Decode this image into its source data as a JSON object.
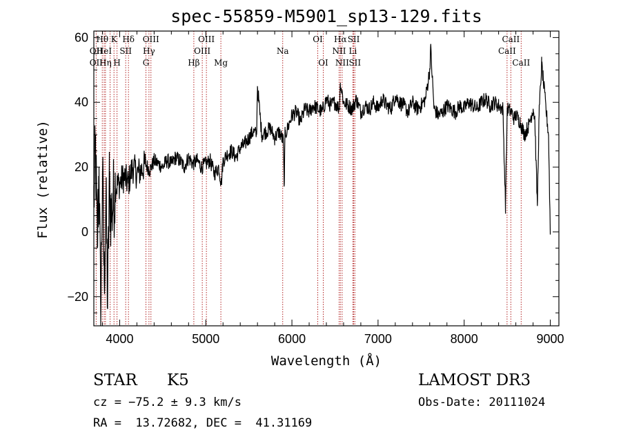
{
  "chart_data": {
    "type": "line",
    "title": "spec-55859-M5901_sp13-129.fits",
    "xlabel": "Wavelength (Å)",
    "ylabel": "Flux (relative)",
    "xlim": [
      3700,
      9100
    ],
    "ylim": [
      -29,
      62
    ],
    "xticks": [
      4000,
      5000,
      6000,
      7000,
      8000,
      9000
    ],
    "yticks": [
      -20,
      0,
      20,
      40,
      60
    ],
    "spectrum": {
      "name": "flux",
      "x": [
        3700,
        3720,
        3740,
        3760,
        3780,
        3800,
        3820,
        3840,
        3860,
        3880,
        3900,
        3950,
        4000,
        4050,
        4100,
        4150,
        4200,
        4250,
        4300,
        4350,
        4400,
        4450,
        4500,
        4550,
        4600,
        4650,
        4700,
        4750,
        4800,
        4850,
        4900,
        4950,
        5000,
        5050,
        5100,
        5150,
        5180,
        5200,
        5250,
        5300,
        5350,
        5400,
        5450,
        5500,
        5550,
        5590,
        5600,
        5650,
        5700,
        5750,
        5800,
        5850,
        5900,
        5910,
        5920,
        5950,
        6000,
        6050,
        6100,
        6150,
        6200,
        6250,
        6300,
        6350,
        6400,
        6450,
        6500,
        6550,
        6563,
        6600,
        6650,
        6700,
        6750,
        6800,
        6850,
        6900,
        6950,
        7000,
        7050,
        7100,
        7150,
        7200,
        7250,
        7300,
        7350,
        7400,
        7450,
        7500,
        7550,
        7600,
        7610,
        7650,
        7700,
        7750,
        7800,
        7850,
        7900,
        7950,
        8000,
        8050,
        8100,
        8150,
        8200,
        8250,
        8300,
        8350,
        8400,
        8450,
        8480,
        8500,
        8550,
        8580,
        8600,
        8650,
        8660,
        8700,
        8750,
        8800,
        8820,
        8850,
        8870,
        8900,
        8950,
        8980,
        9000
      ],
      "y": [
        10,
        25,
        -5,
        20,
        -28,
        18,
        -15,
        10,
        -22,
        15,
        5,
        14,
        15,
        17,
        15,
        20,
        18,
        19,
        21,
        19,
        22,
        21,
        20,
        22,
        21,
        23,
        22,
        20,
        23,
        21,
        22,
        20,
        21,
        22,
        18,
        20,
        15,
        22,
        24,
        25,
        23,
        26,
        27,
        29,
        31,
        30,
        45,
        30,
        31,
        32,
        29,
        31,
        28,
        14,
        30,
        32,
        36,
        37,
        34,
        38,
        37,
        39,
        38,
        37,
        41,
        39,
        40,
        38,
        46,
        40,
        39,
        38,
        41,
        37,
        39,
        38,
        40,
        38,
        41,
        39,
        38,
        42,
        40,
        39,
        37,
        40,
        38,
        39,
        41,
        50,
        57,
        38,
        36,
        37,
        39,
        38,
        37,
        39,
        38,
        40,
        39,
        38,
        40,
        41,
        39,
        40,
        39,
        38,
        8,
        38,
        37,
        35,
        36,
        34,
        33,
        30,
        33,
        38,
        35,
        8,
        36,
        52,
        38,
        30,
        0
      ]
    },
    "emission_lines": [
      {
        "label": "OII",
        "x": 3727,
        "row": 2
      },
      {
        "label": "Hθ",
        "x": 3798,
        "row": 1
      },
      {
        "label": "HeI",
        "x": 3820,
        "row": 2
      },
      {
        "label": "OII",
        "x": 3727,
        "row": 3
      },
      {
        "label": "Hη",
        "x": 3835,
        "row": 3
      },
      {
        "label": "K",
        "x": 3934,
        "row": 1
      },
      {
        "label": "SII",
        "x": 4070,
        "row": 2
      },
      {
        "label": "H",
        "x": 3969,
        "row": 3
      },
      {
        "label": "Hδ",
        "x": 4102,
        "row": 1
      },
      {
        "label": "OIII",
        "x": 4363,
        "row": 1
      },
      {
        "label": "Hγ",
        "x": 4340,
        "row": 2
      },
      {
        "label": "G",
        "x": 4305,
        "row": 3
      },
      {
        "label": "OIII",
        "x": 5007,
        "row": 1
      },
      {
        "label": "OIII",
        "x": 4959,
        "row": 2
      },
      {
        "label": "Hβ",
        "x": 4861,
        "row": 3
      },
      {
        "label": "Mg",
        "x": 5175,
        "row": 3
      },
      {
        "label": "Na",
        "x": 5893,
        "row": 2
      },
      {
        "label": "OI",
        "x": 6300,
        "row": 1
      },
      {
        "label": "OI",
        "x": 6364,
        "row": 3
      },
      {
        "label": "Hα",
        "x": 6563,
        "row": 1
      },
      {
        "label": "SII",
        "x": 6717,
        "row": 1
      },
      {
        "label": "NII",
        "x": 6548,
        "row": 2
      },
      {
        "label": "Li",
        "x": 6708,
        "row": 2
      },
      {
        "label": "NII",
        "x": 6583,
        "row": 3
      },
      {
        "label": "SII",
        "x": 6731,
        "row": 3
      },
      {
        "label": "CaII",
        "x": 8542,
        "row": 1
      },
      {
        "label": "CaII",
        "x": 8498,
        "row": 2
      },
      {
        "label": "CaII",
        "x": 8662,
        "row": 3
      }
    ],
    "line_positions": [
      3727,
      3798,
      3820,
      3835,
      3889,
      3934,
      3969,
      4070,
      4102,
      4305,
      4340,
      4363,
      4861,
      4959,
      5007,
      5175,
      5893,
      6300,
      6364,
      6548,
      6563,
      6583,
      6708,
      6717,
      6731,
      8498,
      8542,
      8662
    ]
  },
  "info": {
    "class": "STAR",
    "subclass": "K5",
    "survey": "LAMOST DR3",
    "cz": "cz = −75.2 ± 9.3 km/s",
    "obs_date": "Obs-Date: 20111024",
    "coords": "RA =  13.72682, DEC =  41.31169"
  },
  "colors": {
    "lines": "#b22222",
    "ink": "#000000"
  }
}
